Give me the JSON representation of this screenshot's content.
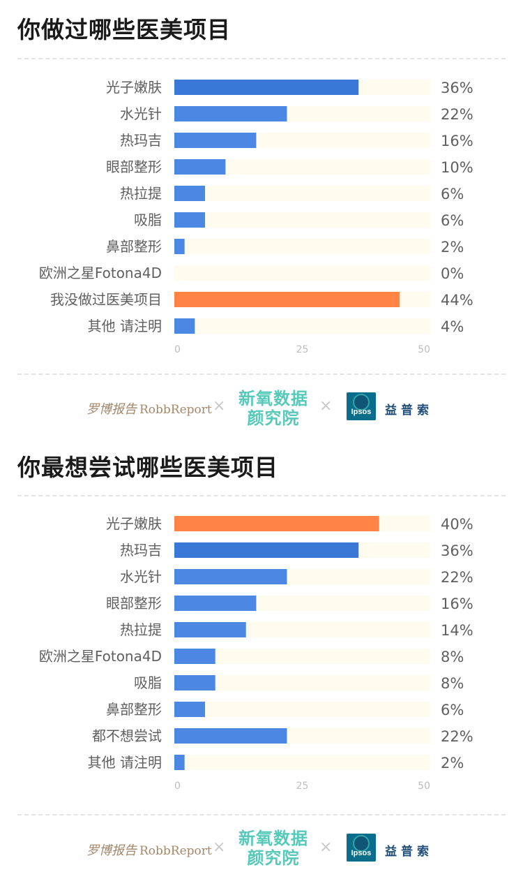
{
  "colors": {
    "bar_blue": "#4b87e3",
    "bar_blue_dark": "#3a78d8",
    "bar_orange": "#ff8446",
    "track": "#fffbee",
    "text": "#5f5f5f",
    "tick": "#bdbdbd",
    "title": "#1a1a1a"
  },
  "logos": {
    "robb_cn": "罗博报告",
    "robb_en": "RobbReport",
    "times": "×",
    "xinyang_line1": "新氧数据",
    "xinyang_line2": "颜究院",
    "ipsos_en": "Ipsos",
    "ipsos_cn": "益普索"
  },
  "chart_data": [
    {
      "type": "bar",
      "orientation": "horizontal",
      "title": "你做过哪些医美项目",
      "categories": [
        "光子嫩肤",
        "水光针",
        "热玛吉",
        "眼部整形",
        "热拉提",
        "吸脂",
        "鼻部整形",
        "欧洲之星Fotona4D",
        "我没做过医美项目",
        "其他 请注明"
      ],
      "values": [
        36,
        22,
        16,
        10,
        6,
        6,
        2,
        0,
        44,
        4
      ],
      "value_labels": [
        "36%",
        "22%",
        "16%",
        "10%",
        "6%",
        "6%",
        "2%",
        "0%",
        "44%",
        "4%"
      ],
      "bar_colors": [
        "#3a78d8",
        "#4b87e3",
        "#4b87e3",
        "#4b87e3",
        "#4b87e3",
        "#4b87e3",
        "#4b87e3",
        "#4b87e3",
        "#ff8446",
        "#4b87e3"
      ],
      "xlim": [
        0,
        50
      ],
      "ticks": [
        0,
        25,
        50
      ],
      "grid": false
    },
    {
      "type": "bar",
      "orientation": "horizontal",
      "title": "你最想尝试哪些医美项目",
      "categories": [
        "光子嫩肤",
        "热玛吉",
        "水光针",
        "眼部整形",
        "热拉提",
        "欧洲之星Fotona4D",
        "吸脂",
        "鼻部整形",
        "都不想尝试",
        "其他 请注明"
      ],
      "values": [
        40,
        36,
        22,
        16,
        14,
        8,
        8,
        6,
        22,
        2
      ],
      "value_labels": [
        "40%",
        "36%",
        "22%",
        "16%",
        "14%",
        "8%",
        "8%",
        "6%",
        "22%",
        "2%"
      ],
      "bar_colors": [
        "#ff8446",
        "#3a78d8",
        "#4b87e3",
        "#4b87e3",
        "#4b87e3",
        "#4b87e3",
        "#4b87e3",
        "#4b87e3",
        "#4b87e3",
        "#4b87e3"
      ],
      "xlim": [
        0,
        50
      ],
      "ticks": [
        0,
        25,
        50
      ],
      "grid": false
    }
  ]
}
